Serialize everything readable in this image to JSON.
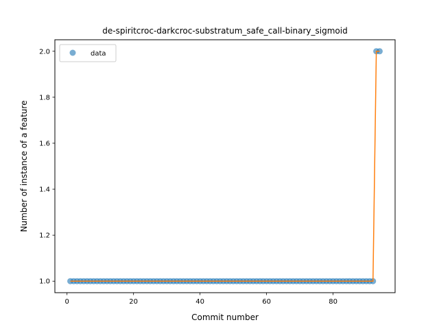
{
  "chart_data": {
    "type": "scatter",
    "title": "de-spiritcroc-darkcroc-substratum_safe_call-binary_sigmoid",
    "xlabel": "Commit number",
    "ylabel": "Number of instance of a feature",
    "xlim": [
      -3.65,
      98.65
    ],
    "ylim": [
      0.95,
      2.05
    ],
    "x_ticks": [
      0,
      20,
      40,
      60,
      80
    ],
    "x_tick_labels": [
      "0",
      "20",
      "40",
      "60",
      "80"
    ],
    "y_ticks": [
      1.0,
      1.2,
      1.4,
      1.6,
      1.8,
      2.0
    ],
    "y_tick_labels": [
      "1.0",
      "1.2",
      "1.4",
      "1.6",
      "1.8",
      "2.0"
    ],
    "legend": {
      "position": "top-left",
      "entries": [
        "data"
      ]
    },
    "grid": false,
    "colors": {
      "data": "#1f77b4",
      "fit": "#ff7f0e"
    },
    "series": [
      {
        "name": "data",
        "style": "markers",
        "x": [
          1,
          2,
          3,
          4,
          5,
          6,
          7,
          8,
          9,
          10,
          11,
          12,
          13,
          14,
          15,
          16,
          17,
          18,
          19,
          20,
          21,
          22,
          23,
          24,
          25,
          26,
          27,
          28,
          29,
          30,
          31,
          32,
          33,
          34,
          35,
          36,
          37,
          38,
          39,
          40,
          41,
          42,
          43,
          44,
          45,
          46,
          47,
          48,
          49,
          50,
          51,
          52,
          53,
          54,
          55,
          56,
          57,
          58,
          59,
          60,
          61,
          62,
          63,
          64,
          65,
          66,
          67,
          68,
          69,
          70,
          71,
          72,
          73,
          74,
          75,
          76,
          77,
          78,
          79,
          80,
          81,
          82,
          83,
          84,
          85,
          86,
          87,
          88,
          89,
          90,
          91,
          92,
          93,
          94
        ],
        "values": [
          1,
          1,
          1,
          1,
          1,
          1,
          1,
          1,
          1,
          1,
          1,
          1,
          1,
          1,
          1,
          1,
          1,
          1,
          1,
          1,
          1,
          1,
          1,
          1,
          1,
          1,
          1,
          1,
          1,
          1,
          1,
          1,
          1,
          1,
          1,
          1,
          1,
          1,
          1,
          1,
          1,
          1,
          1,
          1,
          1,
          1,
          1,
          1,
          1,
          1,
          1,
          1,
          1,
          1,
          1,
          1,
          1,
          1,
          1,
          1,
          1,
          1,
          1,
          1,
          1,
          1,
          1,
          1,
          1,
          1,
          1,
          1,
          1,
          1,
          1,
          1,
          1,
          1,
          1,
          1,
          1,
          1,
          1,
          1,
          1,
          1,
          1,
          1,
          1,
          1,
          1,
          1,
          2,
          2
        ]
      },
      {
        "style": "line",
        "x": [
          1,
          92,
          93,
          94
        ],
        "values": [
          1,
          1,
          2,
          2
        ]
      }
    ]
  }
}
